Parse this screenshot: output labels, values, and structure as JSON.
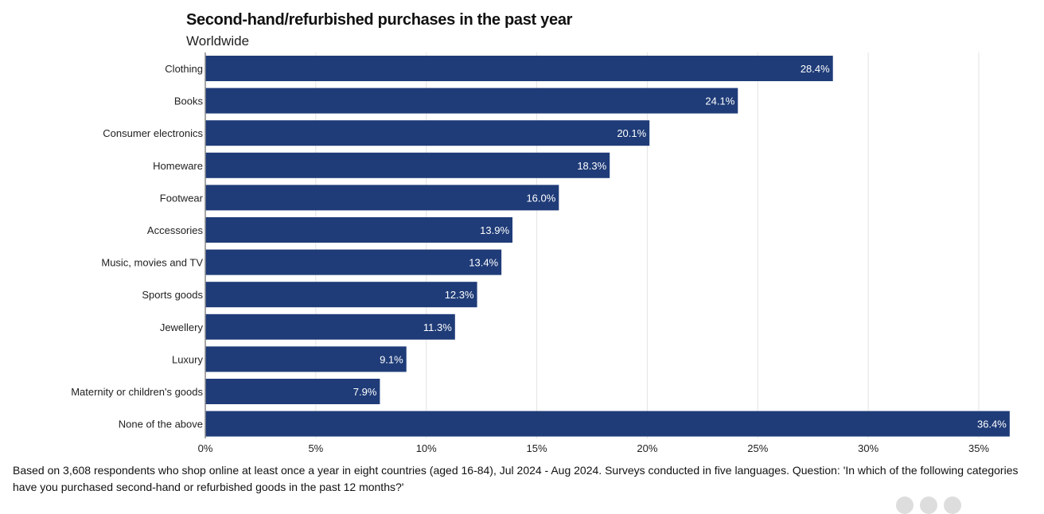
{
  "chart_data": {
    "type": "bar",
    "orientation": "horizontal",
    "title": "Second-hand/refurbished purchases in the past year",
    "subtitle": "Worldwide",
    "categories": [
      "Clothing",
      "Books",
      "Consumer electronics",
      "Homeware",
      "Footwear",
      "Accessories",
      "Music, movies and TV",
      "Sports goods",
      "Jewellery",
      "Luxury",
      "Maternity or children's goods",
      "None of the above"
    ],
    "values": [
      28.4,
      24.1,
      20.1,
      18.3,
      16.0,
      13.9,
      13.4,
      12.3,
      11.3,
      9.1,
      7.9,
      36.4
    ],
    "value_labels": [
      "28.4%",
      "24.1%",
      "20.1%",
      "18.3%",
      "16.0%",
      "13.9%",
      "13.4%",
      "12.3%",
      "11.3%",
      "9.1%",
      "7.9%",
      "36.4%"
    ],
    "xlim": [
      0,
      35
    ],
    "xticks": [
      "0%",
      "5%",
      "10%",
      "15%",
      "20%",
      "25%",
      "30%",
      "35%"
    ],
    "grid": true,
    "bar_color": "#1f3c78",
    "note": "Based on 3,608 respondents who shop online at least once a year in eight countries (aged 16-84), Jul 2024 - Aug 2024. Surveys conducted in five languages. Question: 'In which of the following categories have you purchased second-hand or refurbished goods in the past 12 months?'"
  }
}
